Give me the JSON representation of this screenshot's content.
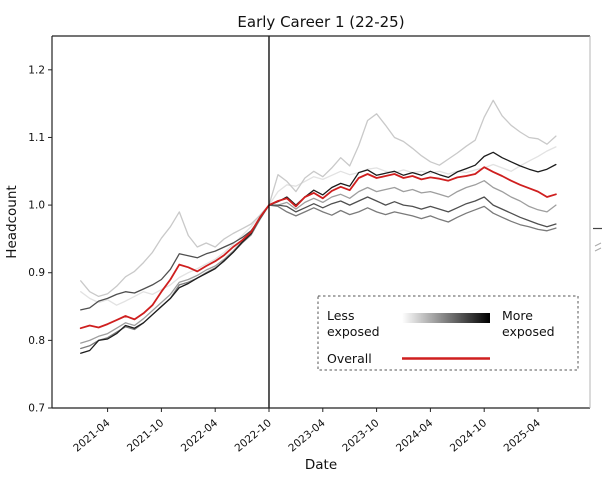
{
  "figure_title": "Early Career 1 (22-25)",
  "legend": {
    "less_line1": "Less",
    "less_line2": "exposed",
    "more_line1": "More",
    "more_line2": "exposed",
    "overall_label": "Overall",
    "gradient_start_color": "#ffffff",
    "gradient_end_color": "#000000",
    "overall_color": "#cf1f1f"
  },
  "chart_data": {
    "type": "line",
    "title": "Early Career 1 (22-25)",
    "xlabel": "Date",
    "ylabel": "Headcount",
    "ylim": [
      0.7,
      1.25
    ],
    "yticks": [
      0.7,
      0.8,
      0.9,
      1.0,
      1.1,
      1.2
    ],
    "x_frequency": "monthly",
    "x_range": [
      "2021-01",
      "2025-06"
    ],
    "xtick_labels": [
      "2021-04",
      "2021-10",
      "2022-04",
      "2022-10",
      "2023-04",
      "2023-10",
      "2024-04",
      "2024-10",
      "2025-04"
    ],
    "xtick_month_offsets": [
      3,
      9,
      15,
      21,
      27,
      33,
      39,
      45,
      51
    ],
    "grid": false,
    "legend_position": "lower right, dashed box",
    "vline": {
      "x": "2022-10",
      "month_offset": 21,
      "color": "#000000"
    },
    "normalized_at": "2022-10",
    "series": [
      {
        "name": "exposure-group-1-least-exposed",
        "color": "#e2e2e2",
        "values": [
          0.872,
          0.862,
          0.856,
          0.86,
          0.852,
          0.858,
          0.865,
          0.872,
          0.868,
          0.875,
          0.882,
          0.893,
          0.9,
          0.906,
          0.913,
          0.92,
          0.93,
          0.942,
          0.955,
          0.968,
          0.985,
          1.0,
          1.02,
          1.03,
          1.028,
          1.035,
          1.042,
          1.038,
          1.044,
          1.05,
          1.045,
          1.048,
          1.053,
          1.055,
          1.05,
          1.048,
          1.052,
          1.048,
          1.05,
          1.047,
          1.05,
          1.046,
          1.05,
          1.048,
          1.052,
          1.055,
          1.06,
          1.055,
          1.05,
          1.058,
          1.065,
          1.072,
          1.08,
          1.086
        ]
      },
      {
        "name": "exposure-group-2",
        "color": "#c9c9c9",
        "values": [
          0.888,
          0.872,
          0.865,
          0.869,
          0.88,
          0.894,
          0.902,
          0.915,
          0.93,
          0.951,
          0.968,
          0.99,
          0.955,
          0.938,
          0.944,
          0.938,
          0.95,
          0.958,
          0.965,
          0.972,
          0.985,
          1.0,
          1.045,
          1.035,
          1.02,
          1.04,
          1.05,
          1.042,
          1.055,
          1.07,
          1.058,
          1.088,
          1.125,
          1.135,
          1.118,
          1.1,
          1.094,
          1.084,
          1.073,
          1.064,
          1.059,
          1.068,
          1.077,
          1.087,
          1.096,
          1.13,
          1.155,
          1.132,
          1.118,
          1.108,
          1.1,
          1.098,
          1.09,
          1.102
        ]
      },
      {
        "name": "exposure-group-3",
        "color": "#9e9e9e",
        "values": [
          0.796,
          0.8,
          0.806,
          0.81,
          0.818,
          0.826,
          0.822,
          0.832,
          0.844,
          0.856,
          0.868,
          0.886,
          0.89,
          0.896,
          0.904,
          0.91,
          0.92,
          0.932,
          0.946,
          0.958,
          0.98,
          1.0,
          1.0,
          1.004,
          0.994,
          1.004,
          1.01,
          1.004,
          1.012,
          1.016,
          1.01,
          1.02,
          1.026,
          1.02,
          1.023,
          1.026,
          1.02,
          1.023,
          1.018,
          1.02,
          1.016,
          1.012,
          1.02,
          1.026,
          1.03,
          1.036,
          1.026,
          1.02,
          1.012,
          1.006,
          0.998,
          0.993,
          0.99,
          1.0
        ]
      },
      {
        "name": "exposure-group-4",
        "color": "#7a7a7a",
        "values": [
          0.788,
          0.792,
          0.8,
          0.804,
          0.812,
          0.82,
          0.816,
          0.826,
          0.838,
          0.85,
          0.862,
          0.882,
          0.886,
          0.892,
          0.9,
          0.907,
          0.917,
          0.93,
          0.944,
          0.956,
          0.979,
          1.0,
          0.998,
          0.99,
          0.984,
          0.99,
          0.996,
          0.99,
          0.985,
          0.992,
          0.986,
          0.99,
          0.996,
          0.99,
          0.986,
          0.99,
          0.987,
          0.984,
          0.98,
          0.984,
          0.979,
          0.975,
          0.982,
          0.988,
          0.993,
          0.998,
          0.988,
          0.982,
          0.976,
          0.971,
          0.968,
          0.964,
          0.962,
          0.966
        ]
      },
      {
        "name": "exposure-group-5",
        "color": "#4f4f4f",
        "values": [
          0.845,
          0.848,
          0.858,
          0.862,
          0.868,
          0.872,
          0.87,
          0.876,
          0.882,
          0.89,
          0.905,
          0.928,
          0.925,
          0.922,
          0.928,
          0.932,
          0.938,
          0.944,
          0.952,
          0.962,
          0.98,
          1.0,
          1.0,
          0.998,
          0.99,
          0.996,
          1.002,
          0.996,
          1.002,
          1.006,
          1.0,
          1.006,
          1.012,
          1.006,
          1.0,
          1.005,
          1.0,
          0.998,
          0.994,
          0.998,
          0.994,
          0.99,
          0.996,
          1.002,
          1.006,
          1.012,
          1.0,
          0.994,
          0.988,
          0.982,
          0.977,
          0.972,
          0.968,
          0.972
        ]
      },
      {
        "name": "exposure-group-6-most-exposed",
        "color": "#1c1c1c",
        "values": [
          0.781,
          0.785,
          0.8,
          0.802,
          0.81,
          0.822,
          0.818,
          0.826,
          0.838,
          0.85,
          0.862,
          0.878,
          0.884,
          0.892,
          0.899,
          0.906,
          0.918,
          0.93,
          0.945,
          0.958,
          0.982,
          1.0,
          1.005,
          1.012,
          1.0,
          1.012,
          1.022,
          1.015,
          1.026,
          1.032,
          1.028,
          1.048,
          1.052,
          1.044,
          1.047,
          1.05,
          1.044,
          1.048,
          1.044,
          1.05,
          1.045,
          1.041,
          1.049,
          1.054,
          1.059,
          1.072,
          1.078,
          1.07,
          1.064,
          1.058,
          1.053,
          1.049,
          1.053,
          1.06
        ]
      },
      {
        "name": "overall",
        "color": "#cf1f1f",
        "values": [
          0.818,
          0.822,
          0.819,
          0.824,
          0.83,
          0.836,
          0.831,
          0.84,
          0.852,
          0.872,
          0.89,
          0.912,
          0.908,
          0.902,
          0.91,
          0.917,
          0.926,
          0.938,
          0.948,
          0.96,
          0.982,
          1.0,
          1.006,
          1.01,
          0.998,
          1.012,
          1.018,
          1.01,
          1.021,
          1.027,
          1.022,
          1.04,
          1.046,
          1.04,
          1.043,
          1.046,
          1.04,
          1.043,
          1.038,
          1.041,
          1.039,
          1.036,
          1.041,
          1.043,
          1.046,
          1.056,
          1.049,
          1.043,
          1.036,
          1.03,
          1.025,
          1.02,
          1.012,
          1.016
        ]
      }
    ]
  }
}
